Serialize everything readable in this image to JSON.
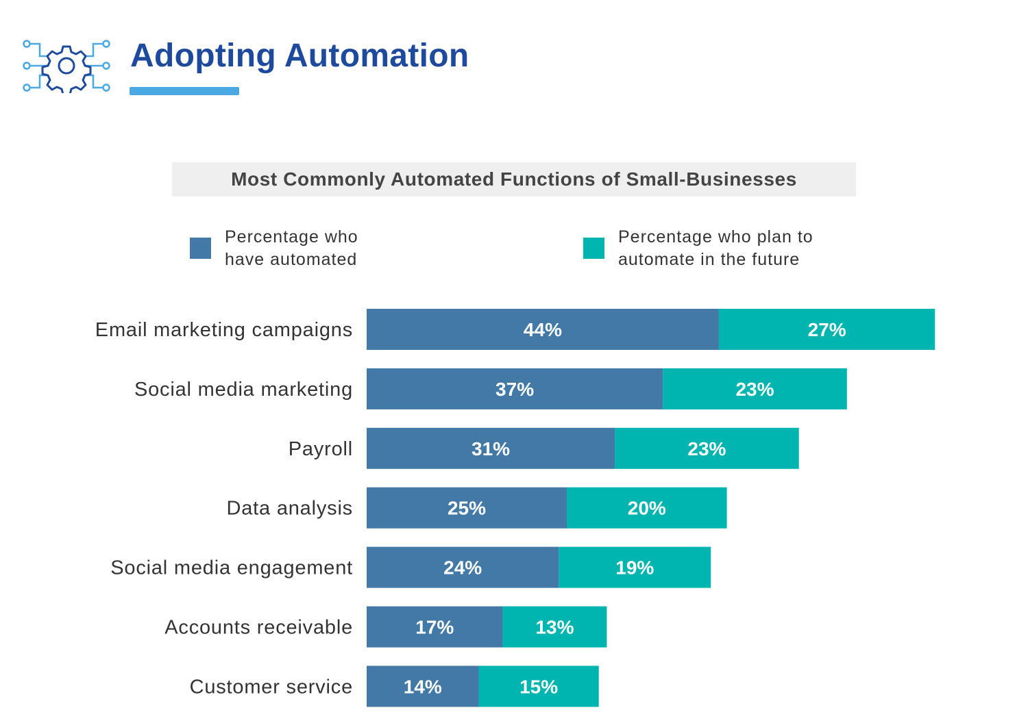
{
  "header": {
    "title": "Adopting Automation",
    "icon": "gear-circuit-icon",
    "title_color": "#1e4a9e",
    "accent_color": "#4aa8e2"
  },
  "chart_data": {
    "type": "bar",
    "orientation": "horizontal",
    "stacked": true,
    "title": "Most Commonly Automated Functions of Small-Businesses",
    "categories": [
      "Email marketing campaigns",
      "Social media marketing",
      "Payroll",
      "Data analysis",
      "Social media engagement",
      "Accounts receivable",
      "Customer service"
    ],
    "series": [
      {
        "name": "Percentage who have automated",
        "color": "#4279a6",
        "values": [
          44,
          37,
          31,
          25,
          24,
          17,
          14
        ],
        "labels": [
          "44%",
          "37%",
          "31%",
          "25%",
          "24%",
          "17%",
          "14%"
        ]
      },
      {
        "name": "Percentage who plan to automate in the future",
        "color": "#00b5b0",
        "values": [
          27,
          23,
          23,
          20,
          19,
          13,
          15
        ],
        "labels": [
          "27%",
          "23%",
          "23%",
          "20%",
          "19%",
          "13%",
          "15%"
        ]
      }
    ],
    "legend": {
      "placement": "top",
      "items": [
        {
          "lines": [
            "Percentage who",
            "have automated"
          ],
          "color": "#4279a6"
        },
        {
          "lines": [
            "Percentage who plan to",
            "automate in the future"
          ],
          "color": "#00b5b0"
        }
      ]
    },
    "grid": false
  }
}
